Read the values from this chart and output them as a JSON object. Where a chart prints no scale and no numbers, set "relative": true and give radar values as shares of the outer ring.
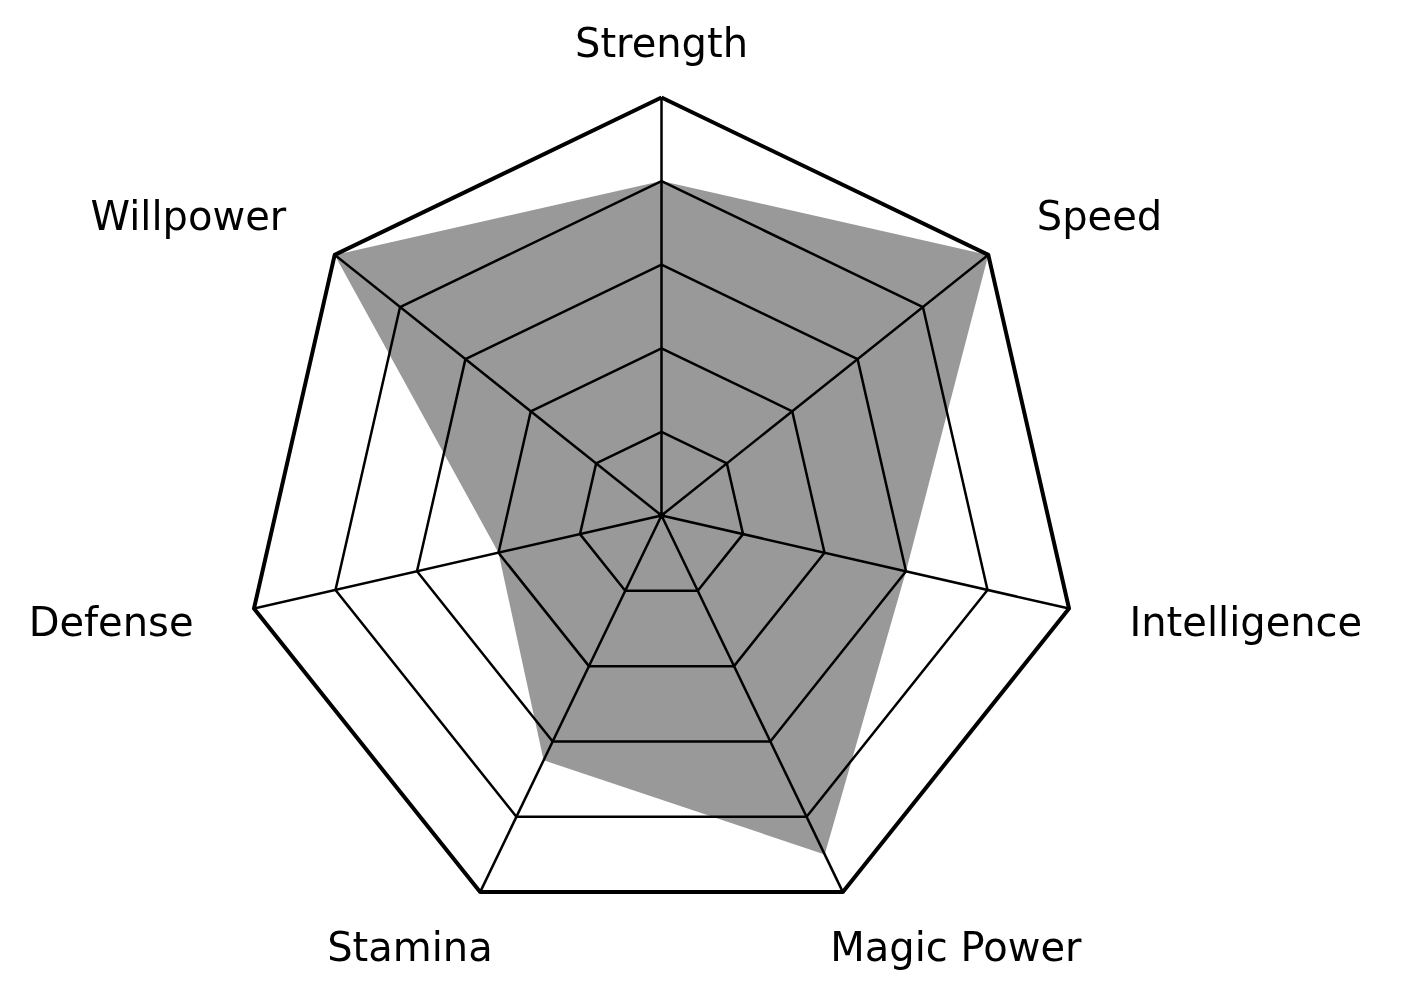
{
  "chart_data": {
    "type": "radar",
    "categories": [
      "Strength",
      "Speed",
      "Intelligence",
      "Magic Power",
      "Stamina",
      "Defense",
      "Willpower"
    ],
    "relative": true,
    "grid": true,
    "series": [
      {
        "color": "#999999",
        "values": [
          0.8,
          1.0,
          0.6,
          0.9,
          0.65,
          0.4,
          1.0
        ]
      }
    ]
  }
}
